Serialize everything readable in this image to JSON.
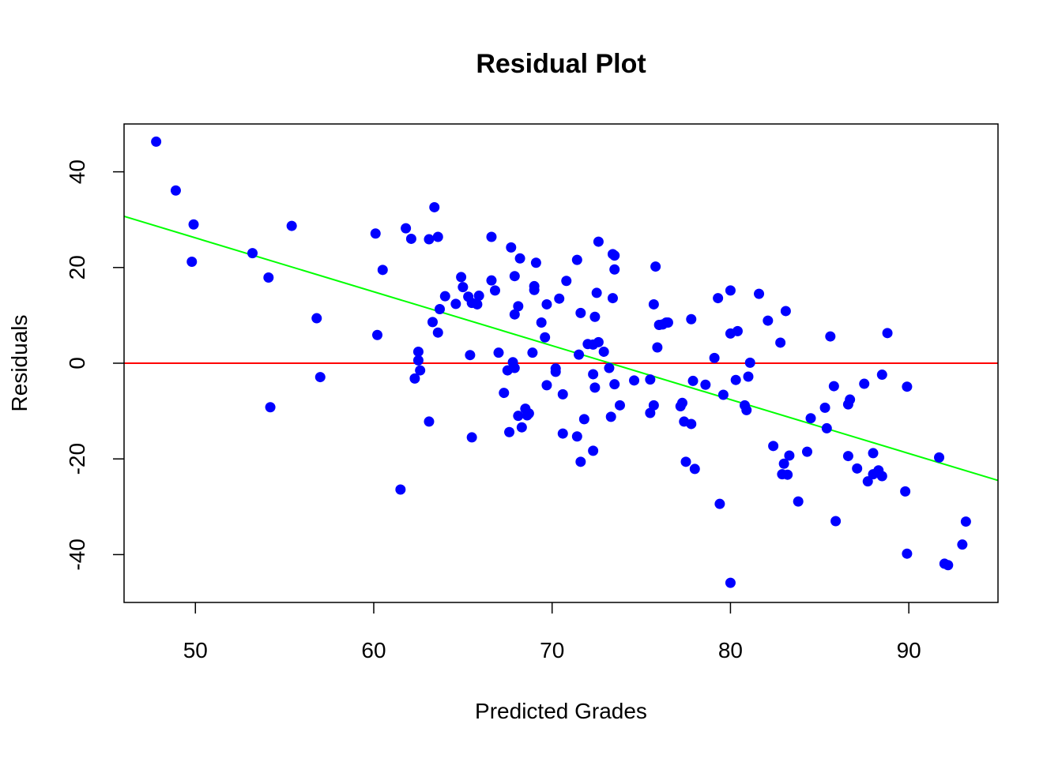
{
  "chart_data": {
    "type": "scatter",
    "title": "Residual Plot",
    "xlabel": "Predicted Grades",
    "ylabel": "Residuals",
    "xlim": [
      46,
      95
    ],
    "ylim": [
      -50,
      50
    ],
    "x_ticks": [
      50,
      60,
      70,
      80,
      90
    ],
    "y_ticks": [
      -40,
      -20,
      0,
      20,
      40
    ],
    "grid": false,
    "legend": "none",
    "point_color": "#0000ff",
    "zero_line": {
      "y": 0,
      "color": "#ff0000"
    },
    "trend_line": {
      "x": [
        46,
        95
      ],
      "y": [
        30.7,
        -24.5
      ],
      "color": "#00ff00"
    },
    "points": [
      [
        47.8,
        46.3
      ],
      [
        48.9,
        36.1
      ],
      [
        49.9,
        29.0
      ],
      [
        49.8,
        21.2
      ],
      [
        53.2,
        23.0
      ],
      [
        54.1,
        17.9
      ],
      [
        54.2,
        -9.2
      ],
      [
        55.4,
        28.7
      ],
      [
        56.8,
        9.4
      ],
      [
        57.0,
        -2.9
      ],
      [
        60.1,
        27.1
      ],
      [
        60.2,
        5.9
      ],
      [
        60.5,
        19.5
      ],
      [
        61.5,
        -26.4
      ],
      [
        61.8,
        28.2
      ],
      [
        62.1,
        26.0
      ],
      [
        62.3,
        -3.2
      ],
      [
        62.5,
        2.4
      ],
      [
        62.5,
        0.6
      ],
      [
        62.6,
        -1.5
      ],
      [
        63.1,
        -12.2
      ],
      [
        63.1,
        25.9
      ],
      [
        63.3,
        8.6
      ],
      [
        63.4,
        32.6
      ],
      [
        63.6,
        26.4
      ],
      [
        63.6,
        6.4
      ],
      [
        63.7,
        11.3
      ],
      [
        64.0,
        14.0
      ],
      [
        64.6,
        12.4
      ],
      [
        64.9,
        18.0
      ],
      [
        65.0,
        15.9
      ],
      [
        65.3,
        13.9
      ],
      [
        65.4,
        1.7
      ],
      [
        65.5,
        -15.5
      ],
      [
        65.5,
        12.6
      ],
      [
        65.8,
        12.3
      ],
      [
        65.9,
        14.1
      ],
      [
        66.6,
        26.4
      ],
      [
        66.6,
        17.3
      ],
      [
        66.8,
        15.2
      ],
      [
        67.0,
        2.2
      ],
      [
        67.3,
        -6.2
      ],
      [
        67.5,
        -1.5
      ],
      [
        67.6,
        -14.4
      ],
      [
        67.7,
        24.2
      ],
      [
        67.8,
        0.2
      ],
      [
        67.9,
        -1.0
      ],
      [
        67.9,
        18.2
      ],
      [
        67.9,
        10.2
      ],
      [
        68.1,
        -11.0
      ],
      [
        68.1,
        11.9
      ],
      [
        68.2,
        21.9
      ],
      [
        68.3,
        -13.4
      ],
      [
        68.5,
        -9.5
      ],
      [
        68.6,
        -10.9
      ],
      [
        68.7,
        -10.5
      ],
      [
        68.9,
        2.2
      ],
      [
        69.0,
        16.1
      ],
      [
        69.0,
        15.3
      ],
      [
        69.1,
        21.0
      ],
      [
        69.4,
        8.5
      ],
      [
        69.6,
        5.4
      ],
      [
        69.7,
        -4.6
      ],
      [
        69.7,
        12.3
      ],
      [
        70.2,
        -1.1
      ],
      [
        70.2,
        -1.8
      ],
      [
        70.4,
        13.5
      ],
      [
        70.6,
        -6.5
      ],
      [
        70.6,
        -14.7
      ],
      [
        70.8,
        17.2
      ],
      [
        71.4,
        21.6
      ],
      [
        71.4,
        -15.3
      ],
      [
        71.5,
        1.8
      ],
      [
        71.6,
        10.5
      ],
      [
        71.6,
        -20.6
      ],
      [
        71.8,
        -11.7
      ],
      [
        72.0,
        4.0
      ],
      [
        72.3,
        3.9
      ],
      [
        72.3,
        -18.3
      ],
      [
        72.3,
        -2.3
      ],
      [
        72.4,
        -5.1
      ],
      [
        72.4,
        9.7
      ],
      [
        72.5,
        14.7
      ],
      [
        72.6,
        25.4
      ],
      [
        72.6,
        4.4
      ],
      [
        72.9,
        2.4
      ],
      [
        73.2,
        -1.0
      ],
      [
        73.3,
        -11.2
      ],
      [
        73.4,
        22.8
      ],
      [
        73.4,
        13.6
      ],
      [
        73.5,
        19.6
      ],
      [
        73.5,
        22.5
      ],
      [
        73.5,
        -4.4
      ],
      [
        73.8,
        -8.8
      ],
      [
        74.6,
        -3.6
      ],
      [
        75.5,
        -10.4
      ],
      [
        75.5,
        -3.4
      ],
      [
        75.7,
        -8.8
      ],
      [
        75.7,
        12.3
      ],
      [
        75.8,
        20.2
      ],
      [
        75.9,
        3.3
      ],
      [
        76.0,
        8.0
      ],
      [
        76.2,
        8.1
      ],
      [
        76.4,
        8.5
      ],
      [
        76.5,
        8.5
      ],
      [
        77.2,
        -9.0
      ],
      [
        77.3,
        -8.3
      ],
      [
        77.4,
        -12.2
      ],
      [
        77.5,
        -20.6
      ],
      [
        77.8,
        -12.7
      ],
      [
        77.8,
        9.2
      ],
      [
        77.9,
        -3.7
      ],
      [
        78.0,
        -22.1
      ],
      [
        78.6,
        -4.5
      ],
      [
        79.1,
        1.1
      ],
      [
        79.3,
        13.6
      ],
      [
        79.4,
        -29.4
      ],
      [
        79.6,
        -6.6
      ],
      [
        80.0,
        15.2
      ],
      [
        80.0,
        6.2
      ],
      [
        80.0,
        -45.9
      ],
      [
        80.3,
        -3.5
      ],
      [
        80.4,
        6.7
      ],
      [
        80.8,
        -8.8
      ],
      [
        80.9,
        -9.8
      ],
      [
        81.0,
        -2.8
      ],
      [
        81.1,
        0.1
      ],
      [
        81.6,
        14.5
      ],
      [
        82.1,
        8.9
      ],
      [
        82.4,
        -17.3
      ],
      [
        82.8,
        4.3
      ],
      [
        82.9,
        -23.2
      ],
      [
        83.0,
        -21.0
      ],
      [
        83.1,
        10.9
      ],
      [
        83.2,
        -23.3
      ],
      [
        83.3,
        -19.3
      ],
      [
        83.8,
        -28.9
      ],
      [
        84.3,
        -18.5
      ],
      [
        84.5,
        -11.5
      ],
      [
        85.3,
        -9.3
      ],
      [
        85.4,
        -13.6
      ],
      [
        85.6,
        5.6
      ],
      [
        85.8,
        -4.8
      ],
      [
        85.9,
        -33.0
      ],
      [
        86.6,
        -19.4
      ],
      [
        86.6,
        -8.6
      ],
      [
        86.7,
        -7.6
      ],
      [
        87.1,
        -22.0
      ],
      [
        87.5,
        -4.3
      ],
      [
        87.7,
        -24.7
      ],
      [
        88.0,
        -23.2
      ],
      [
        88.0,
        -18.8
      ],
      [
        88.3,
        -22.4
      ],
      [
        88.5,
        -2.4
      ],
      [
        88.5,
        -23.6
      ],
      [
        88.8,
        6.3
      ],
      [
        89.8,
        -26.8
      ],
      [
        89.9,
        -39.8
      ],
      [
        89.9,
        -4.9
      ],
      [
        91.7,
        -19.7
      ],
      [
        92.0,
        -41.9
      ],
      [
        92.2,
        -42.2
      ],
      [
        93.0,
        -37.9
      ],
      [
        93.2,
        -33.1
      ]
    ]
  }
}
